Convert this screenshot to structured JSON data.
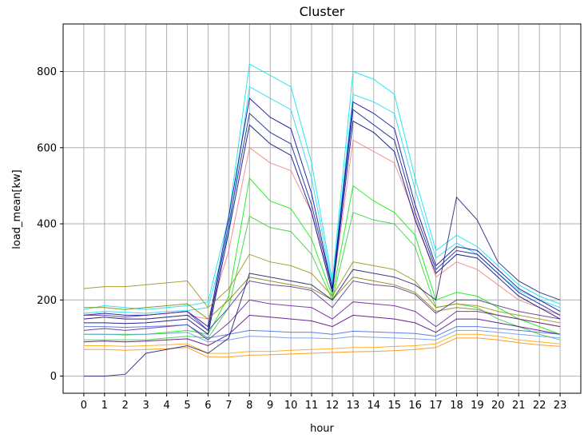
{
  "chart_data": {
    "type": "line",
    "title": "Cluster",
    "xlabel": "hour",
    "ylabel": "load_mean[kw]",
    "x": [
      0,
      1,
      2,
      3,
      4,
      5,
      6,
      7,
      8,
      9,
      10,
      11,
      12,
      13,
      14,
      15,
      16,
      17,
      18,
      19,
      20,
      21,
      22,
      23
    ],
    "xlim": [
      -1,
      24
    ],
    "ylim": [
      -45,
      925
    ],
    "y_ticks": [
      0,
      200,
      400,
      600,
      800
    ],
    "grid": true,
    "legend": "none",
    "series": [
      {
        "color": "#00e5ee",
        "values": [
          175,
          185,
          180,
          175,
          180,
          185,
          195,
          420,
          820,
          790,
          760,
          560,
          250,
          800,
          780,
          740,
          520,
          330,
          370,
          340,
          290,
          240,
          210,
          190
        ]
      },
      {
        "color": "#1dd8f0",
        "values": [
          165,
          170,
          168,
          165,
          170,
          172,
          180,
          380,
          760,
          730,
          700,
          520,
          240,
          740,
          720,
          690,
          490,
          310,
          350,
          320,
          270,
          225,
          200,
          180
        ]
      },
      {
        "color": "#f08080",
        "values": [
          150,
          155,
          150,
          150,
          155,
          160,
          150,
          330,
          600,
          560,
          540,
          430,
          220,
          620,
          590,
          560,
          420,
          260,
          300,
          280,
          240,
          200,
          180,
          160
        ]
      },
      {
        "color": "#00ee00",
        "values": [
          110,
          110,
          110,
          110,
          115,
          120,
          110,
          210,
          520,
          460,
          440,
          360,
          210,
          500,
          460,
          430,
          370,
          200,
          220,
          210,
          180,
          150,
          130,
          110
        ]
      },
      {
        "color": "#32cd32",
        "values": [
          95,
          95,
          95,
          95,
          100,
          105,
          100,
          180,
          420,
          390,
          380,
          320,
          200,
          430,
          410,
          400,
          340,
          180,
          190,
          180,
          150,
          130,
          110,
          95
        ]
      },
      {
        "color": "#0a1f8f",
        "values": [
          150,
          155,
          150,
          150,
          155,
          160,
          120,
          400,
          690,
          640,
          610,
          450,
          230,
          700,
          660,
          620,
          430,
          280,
          330,
          320,
          270,
          220,
          190,
          160
        ]
      },
      {
        "color": "#000080",
        "values": [
          140,
          140,
          138,
          140,
          145,
          150,
          110,
          380,
          660,
          610,
          580,
          430,
          220,
          670,
          640,
          590,
          410,
          270,
          320,
          310,
          260,
          210,
          180,
          150
        ]
      },
      {
        "color": "#0000a0",
        "values": [
          160,
          165,
          160,
          160,
          165,
          170,
          130,
          420,
          730,
          680,
          650,
          480,
          230,
          720,
          690,
          650,
          450,
          290,
          340,
          330,
          280,
          230,
          200,
          170
        ]
      },
      {
        "color": "#808000",
        "values": [
          180,
          180,
          175,
          180,
          185,
          190,
          150,
          200,
          260,
          250,
          240,
          230,
          200,
          260,
          250,
          240,
          220,
          170,
          180,
          175,
          160,
          150,
          140,
          130
        ]
      },
      {
        "color": "#9a8f10",
        "values": [
          230,
          235,
          235,
          240,
          245,
          250,
          180,
          230,
          320,
          300,
          290,
          270,
          210,
          300,
          290,
          280,
          250,
          180,
          190,
          185,
          170,
          160,
          150,
          140
        ]
      },
      {
        "color": "#5a2d91",
        "values": [
          160,
          160,
          155,
          160,
          165,
          170,
          120,
          180,
          250,
          240,
          235,
          225,
          180,
          250,
          240,
          235,
          215,
          165,
          200,
          200,
          185,
          170,
          160,
          150
        ]
      },
      {
        "color": "#6a1b9a",
        "values": [
          120,
          125,
          120,
          125,
          130,
          135,
          95,
          140,
          200,
          190,
          185,
          180,
          150,
          195,
          190,
          185,
          170,
          130,
          170,
          170,
          160,
          150,
          140,
          130
        ]
      },
      {
        "color": "#4b0082",
        "values": [
          90,
          92,
          90,
          92,
          95,
          98,
          80,
          110,
          160,
          155,
          150,
          145,
          130,
          160,
          155,
          150,
          140,
          115,
          150,
          150,
          140,
          130,
          120,
          110
        ]
      },
      {
        "color": "#4169e1",
        "values": [
          130,
          130,
          128,
          130,
          132,
          135,
          100,
          110,
          120,
          118,
          115,
          115,
          110,
          118,
          116,
          114,
          112,
          105,
          130,
          130,
          125,
          120,
          115,
          110
        ]
      },
      {
        "color": "#6495ed",
        "values": [
          110,
          110,
          108,
          110,
          112,
          115,
          90,
          95,
          105,
          103,
          100,
          100,
          98,
          104,
          102,
          100,
          98,
          95,
          120,
          120,
          115,
          110,
          105,
          100
        ]
      },
      {
        "color": "#ffa500",
        "values": [
          80,
          80,
          78,
          80,
          82,
          85,
          60,
          60,
          65,
          65,
          68,
          70,
          72,
          75,
          75,
          78,
          80,
          85,
          110,
          110,
          105,
          95,
          90,
          85
        ]
      },
      {
        "color": "#ff8c00",
        "values": [
          70,
          70,
          68,
          70,
          72,
          75,
          50,
          50,
          55,
          56,
          58,
          60,
          62,
          64,
          65,
          67,
          70,
          75,
          100,
          100,
          95,
          88,
          82,
          78
        ]
      },
      {
        "color": "#191970",
        "values": [
          0,
          0,
          5,
          60,
          70,
          80,
          60,
          100,
          270,
          260,
          250,
          240,
          200,
          280,
          270,
          260,
          240,
          200,
          470,
          410,
          300,
          250,
          220,
          200
        ]
      }
    ]
  }
}
